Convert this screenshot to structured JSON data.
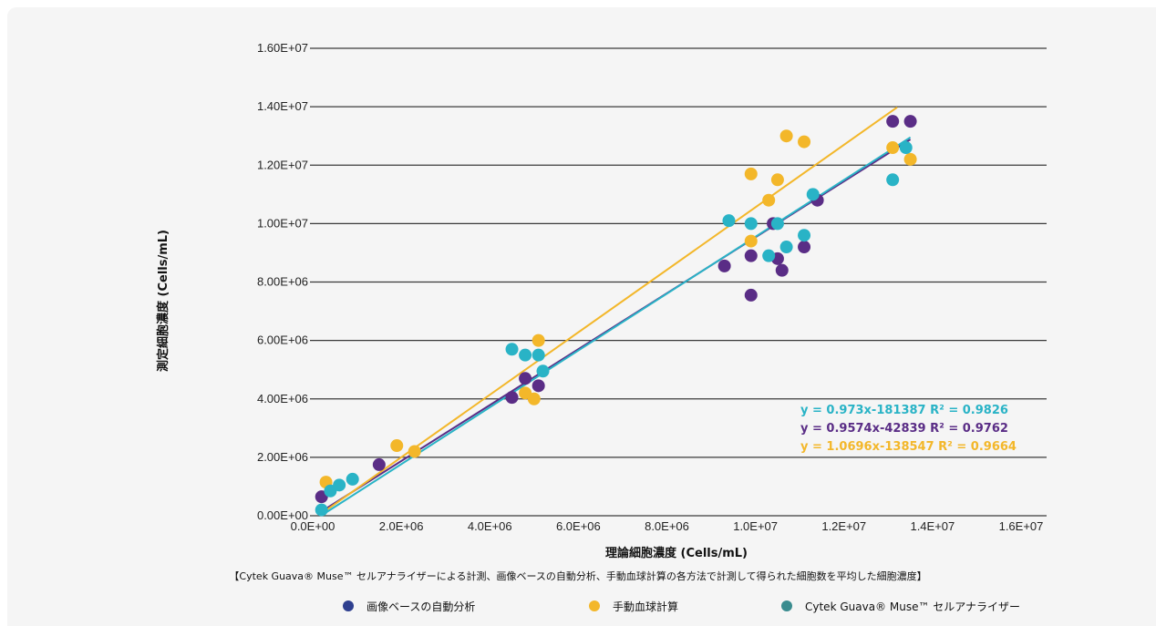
{
  "chart_data": {
    "type": "scatter",
    "xlabel": "理論細胞濃度 (Cells/mL)",
    "ylabel": "測定細胞濃度 (Cells/mL)",
    "xlim": [
      0,
      16000000
    ],
    "ylim": [
      0,
      16000000
    ],
    "x_ticks": [
      "0.0E+00",
      "2.0E+06",
      "4.0E+06",
      "6.0E+06",
      "8.0E+06",
      "1.0E+07",
      "1.2E+07",
      "1.4E+07",
      "1.6E+07"
    ],
    "y_ticks": [
      "0.00E+00",
      "2.00E+06",
      "4.00E+06",
      "6.00E+06",
      "8.00E+06",
      "1.00E+07",
      "1.20E+07",
      "1.40E+07",
      "1.60E+07"
    ],
    "grid": "horizontal",
    "series": [
      {
        "name": "画像ベースの自動分析",
        "color": "#5a2d86",
        "points": [
          [
            200000,
            650000
          ],
          [
            1500000,
            1750000
          ],
          [
            4800000,
            4700000
          ],
          [
            5100000,
            4450000
          ],
          [
            4500000,
            4050000
          ],
          [
            9300000,
            8550000
          ],
          [
            9900000,
            8900000
          ],
          [
            9900000,
            7550000
          ],
          [
            10400000,
            10000000
          ],
          [
            10500000,
            8800000
          ],
          [
            10600000,
            8400000
          ],
          [
            11100000,
            9200000
          ],
          [
            11400000,
            10800000
          ],
          [
            13100000,
            13500000
          ],
          [
            13500000,
            13500000
          ]
        ],
        "trendline": {
          "slope": 0.9574,
          "intercept": -42839,
          "x_range": [
            250000,
            13500000
          ]
        },
        "equation": "y = 0.9574x-42839 R² = 0.9762"
      },
      {
        "name": "手動血球計算",
        "color": "#f3b72a",
        "points": [
          [
            300000,
            1150000
          ],
          [
            1900000,
            2400000
          ],
          [
            2300000,
            2200000
          ],
          [
            4800000,
            4200000
          ],
          [
            5000000,
            4000000
          ],
          [
            5100000,
            6000000
          ],
          [
            9900000,
            11700000
          ],
          [
            9900000,
            9400000
          ],
          [
            10300000,
            10800000
          ],
          [
            10500000,
            11500000
          ],
          [
            10700000,
            13000000
          ],
          [
            11100000,
            12800000
          ],
          [
            13100000,
            12600000
          ],
          [
            13500000,
            12200000
          ]
        ],
        "trendline": {
          "slope": 1.0696,
          "intercept": -138547,
          "x_range": [
            250000,
            13200000
          ]
        },
        "equation": "y = 1.0696x-138547 R² = 0.9664"
      },
      {
        "name": "Cytek Guava® Muse™ セルアナライザー",
        "color": "#29b3c6",
        "points": [
          [
            200000,
            200000
          ],
          [
            400000,
            850000
          ],
          [
            600000,
            1050000
          ],
          [
            900000,
            1250000
          ],
          [
            4500000,
            5700000
          ],
          [
            4800000,
            5500000
          ],
          [
            5100000,
            5500000
          ],
          [
            5200000,
            4950000
          ],
          [
            9400000,
            10100000
          ],
          [
            9900000,
            10000000
          ],
          [
            10500000,
            10000000
          ],
          [
            10300000,
            8900000
          ],
          [
            10700000,
            9200000
          ],
          [
            11100000,
            9600000
          ],
          [
            11300000,
            11000000
          ],
          [
            13100000,
            11500000
          ],
          [
            13400000,
            12600000
          ]
        ],
        "trendline": {
          "slope": 0.973,
          "intercept": -181387,
          "x_range": [
            250000,
            13500000
          ]
        },
        "equation": "y = 0.973x-181387 R² = 0.9826"
      }
    ]
  },
  "caption": "【Cytek Guava® Muse™ セルアナライザーによる計測、画像ベースの自動分析、手動血球計算の各方法で計測して得られた細胞数を平均した細胞濃度】",
  "legend": {
    "items": [
      {
        "label": "画像ベースの自動分析",
        "color": "#2e3f8f"
      },
      {
        "label": "手動血球計算",
        "color": "#f3b72a"
      },
      {
        "label": "Cytek Guava® Muse™ セルアナライザー",
        "color": "#3a8c8f"
      }
    ]
  }
}
